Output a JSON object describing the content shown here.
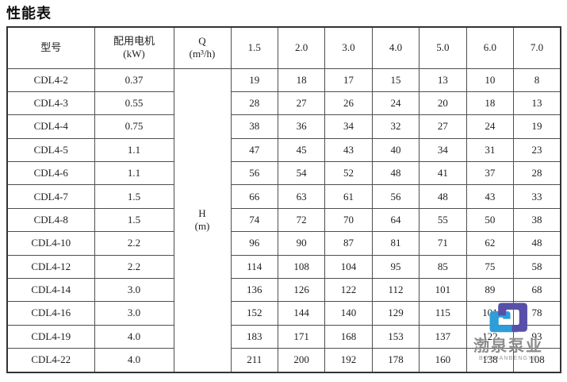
{
  "title": "性能表",
  "table": {
    "headers": {
      "model": "型号",
      "motor_line1": "配用电机",
      "motor_line2": "(kW)",
      "q_line1": "Q",
      "q_line2": "(m³/h)",
      "h_line1": "H",
      "h_line2": "(m)"
    },
    "flow_columns": [
      "1.5",
      "2.0",
      "3.0",
      "4.0",
      "5.0",
      "6.0",
      "7.0"
    ],
    "rows": [
      {
        "model": "CDL4-2",
        "kw": "0.37",
        "values": [
          19,
          18,
          17,
          15,
          13,
          10,
          8
        ]
      },
      {
        "model": "CDL4-3",
        "kw": "0.55",
        "values": [
          28,
          27,
          26,
          24,
          20,
          18,
          13
        ]
      },
      {
        "model": "CDL4-4",
        "kw": "0.75",
        "values": [
          38,
          36,
          34,
          32,
          27,
          24,
          19
        ]
      },
      {
        "model": "CDL4-5",
        "kw": "1.1",
        "values": [
          47,
          45,
          43,
          40,
          34,
          31,
          23
        ]
      },
      {
        "model": "CDL4-6",
        "kw": "1.1",
        "values": [
          56,
          54,
          52,
          48,
          41,
          37,
          28
        ]
      },
      {
        "model": "CDL4-7",
        "kw": "1.5",
        "values": [
          66,
          63,
          61,
          56,
          48,
          43,
          33
        ]
      },
      {
        "model": "CDL4-8",
        "kw": "1.5",
        "values": [
          74,
          72,
          70,
          64,
          55,
          50,
          38
        ]
      },
      {
        "model": "CDL4-10",
        "kw": "2.2",
        "values": [
          96,
          90,
          87,
          81,
          71,
          62,
          48
        ]
      },
      {
        "model": "CDL4-12",
        "kw": "2.2",
        "values": [
          114,
          108,
          104,
          95,
          85,
          75,
          58
        ]
      },
      {
        "model": "CDL4-14",
        "kw": "3.0",
        "values": [
          136,
          126,
          122,
          112,
          101,
          89,
          68
        ]
      },
      {
        "model": "CDL4-16",
        "kw": "3.0",
        "values": [
          152,
          144,
          140,
          129,
          115,
          101,
          78
        ]
      },
      {
        "model": "CDL4-19",
        "kw": "4.0",
        "values": [
          183,
          171,
          168,
          153,
          137,
          122,
          93
        ]
      },
      {
        "model": "CDL4-22",
        "kw": "4.0",
        "values": [
          211,
          200,
          192,
          178,
          160,
          138,
          108
        ]
      }
    ]
  },
  "watermark": {
    "name_cn": "渤泉泵业",
    "name_en": "BOQUANBENGYE",
    "logo_blue": "#2f9dd8",
    "logo_purple": "#584fa8",
    "text_color": "#8d8d8d"
  }
}
